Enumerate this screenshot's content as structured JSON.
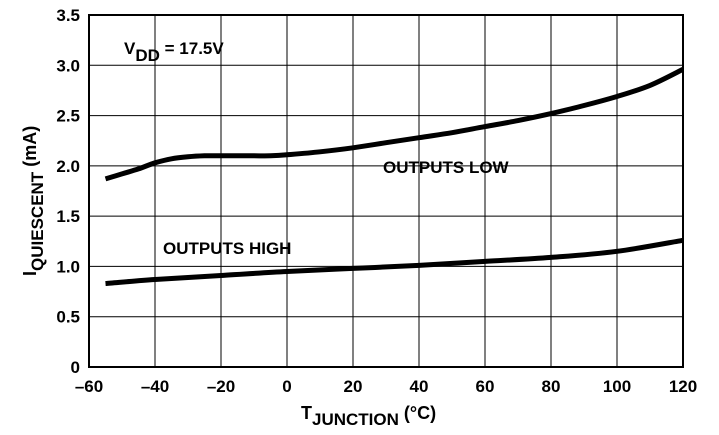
{
  "chart_data": {
    "type": "line",
    "xlim": [
      -60,
      120
    ],
    "ylim": [
      0,
      3.5
    ],
    "xticks": [
      "–60",
      "–40",
      "–20",
      "0",
      "20",
      "40",
      "60",
      "80",
      "100",
      "120"
    ],
    "yticks": [
      "0",
      "0.5",
      "1.0",
      "1.5",
      "2.0",
      "2.5",
      "3.0",
      "3.5"
    ],
    "grid": true,
    "xlabel": {
      "main": "T",
      "sub": "JUNCTION",
      "unit": " (°C)"
    },
    "ylabel": {
      "main": "I",
      "sub": "QUIESCENT",
      "unit": " (mA)"
    },
    "annotations": {
      "vdd": {
        "main": "V",
        "sub": "DD",
        "rest": " = 17.5V"
      },
      "outputs_low": "OUTPUTS LOW",
      "outputs_high": "OUTPUTS HIGH"
    },
    "series": [
      {
        "name": "OUTPUTS LOW",
        "x": [
          -55,
          -50,
          -45,
          -40,
          -35,
          -30,
          -25,
          -20,
          -15,
          -10,
          -5,
          0,
          10,
          20,
          30,
          40,
          50,
          60,
          70,
          80,
          90,
          100,
          110,
          120
        ],
        "y": [
          1.87,
          1.92,
          1.97,
          2.03,
          2.07,
          2.09,
          2.1,
          2.1,
          2.1,
          2.1,
          2.1,
          2.11,
          2.14,
          2.18,
          2.23,
          2.28,
          2.33,
          2.39,
          2.45,
          2.52,
          2.6,
          2.69,
          2.8,
          2.96
        ]
      },
      {
        "name": "OUTPUTS HIGH",
        "x": [
          -55,
          -40,
          -20,
          0,
          20,
          40,
          60,
          80,
          100,
          120
        ],
        "y": [
          0.83,
          0.87,
          0.91,
          0.95,
          0.98,
          1.01,
          1.05,
          1.09,
          1.15,
          1.26
        ]
      }
    ]
  }
}
